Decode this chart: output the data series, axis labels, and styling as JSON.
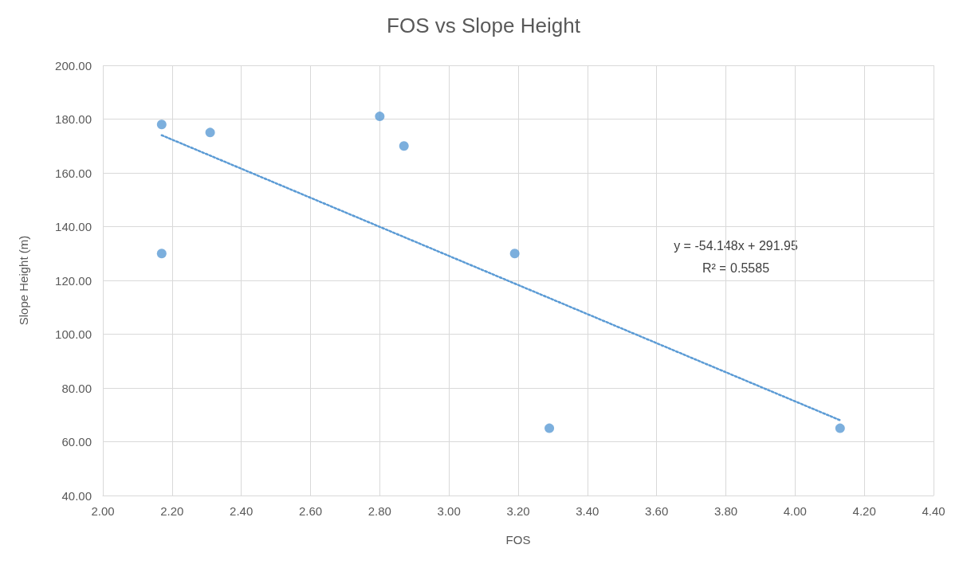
{
  "chart_data": {
    "type": "scatter",
    "title": "FOS vs Slope Height",
    "xlabel": "FOS",
    "ylabel": "Slope Height (m)",
    "series": [
      {
        "color": "#5b9bd5",
        "x": [
          2.17,
          2.17,
          2.31,
          2.8,
          2.87,
          3.19,
          3.29,
          4.13
        ],
        "values": [
          178,
          130,
          175,
          181,
          170,
          130,
          65,
          65
        ],
        "marker": "circle"
      },
      {
        "type": "line",
        "color": "#5b9bd5",
        "x": [
          2.17,
          4.13
        ],
        "values": [
          174,
          68
        ],
        "line_style": "dotted",
        "marker": "none"
      }
    ],
    "xlim": [
      2,
      4.4
    ],
    "xticks": [
      {
        "value": 2,
        "label": "2.00"
      },
      {
        "value": 2.2,
        "label": "2.20"
      },
      {
        "value": 2.4,
        "label": "2.40"
      },
      {
        "value": 2.6,
        "label": "2.60"
      },
      {
        "value": 2.8,
        "label": "2.80"
      },
      {
        "value": 3,
        "label": "3.00"
      },
      {
        "value": 3.2,
        "label": "3.20"
      },
      {
        "value": 3.4,
        "label": "3.40"
      },
      {
        "value": 3.6,
        "label": "3.60"
      },
      {
        "value": 3.8,
        "label": "3.80"
      },
      {
        "value": 4,
        "label": "4.00"
      },
      {
        "value": 4.2,
        "label": "4.20"
      },
      {
        "value": 4.4,
        "label": "4.40"
      }
    ],
    "ylim": [
      40,
      200
    ],
    "yticks": [
      {
        "value": 40,
        "label": "40.00"
      },
      {
        "value": 60,
        "label": "60.00"
      },
      {
        "value": 80,
        "label": "80.00"
      },
      {
        "value": 100,
        "label": "100.00"
      },
      {
        "value": 120,
        "label": "120.00"
      },
      {
        "value": 140,
        "label": "140.00"
      },
      {
        "value": 160,
        "label": "160.00"
      },
      {
        "value": 180,
        "label": "180.00"
      },
      {
        "value": 200,
        "label": "200.00"
      }
    ],
    "grid": true,
    "annotations": [
      "y = -54.148x + 291.95",
      "R² = 0.5585"
    ]
  }
}
